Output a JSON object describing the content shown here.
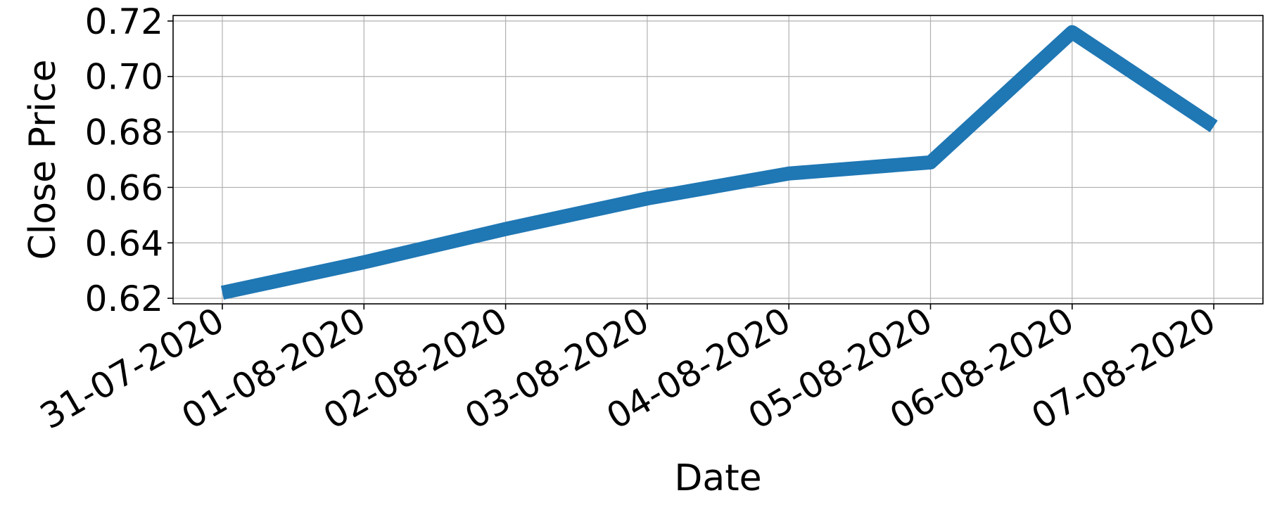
{
  "chart_data": {
    "type": "line",
    "title": "",
    "xlabel": "Date",
    "ylabel": "Close Price",
    "x": [
      "31-07-2020",
      "01-08-2020",
      "02-08-2020",
      "03-08-2020",
      "04-08-2020",
      "05-08-2020",
      "06-08-2020",
      "07-08-2020"
    ],
    "series": [
      {
        "values": [
          0.622,
          0.633,
          0.645,
          0.656,
          0.665,
          0.669,
          0.716,
          0.682
        ]
      }
    ],
    "y_ticks": [
      "0.62",
      "0.64",
      "0.66",
      "0.68",
      "0.70",
      "0.72"
    ],
    "ylim": [
      0.618,
      0.722
    ],
    "grid": true,
    "colors": {
      "line": "#1f77b4",
      "grid": "#b0b0b0",
      "axes": "#000000"
    }
  }
}
